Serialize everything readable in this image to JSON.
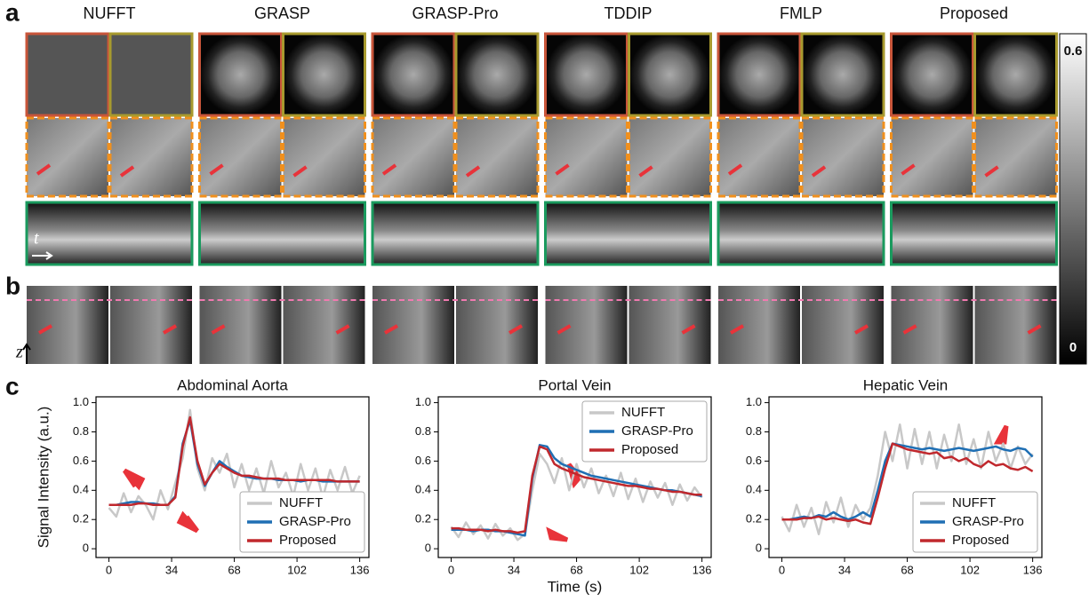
{
  "panels": [
    "a",
    "b",
    "c"
  ],
  "methods": [
    "NUFFT",
    "GRASP",
    "GRASP-Pro",
    "TDDIP",
    "FMLP",
    "Proposed"
  ],
  "colorbar": {
    "max": 0.6,
    "min": 0
  },
  "axis_letters": {
    "time": "t",
    "depth": "z"
  },
  "chart_data": [
    {
      "type": "line",
      "title": "Abdominal Aorta",
      "ylabel": "Signal Intensity (a.u.)",
      "legend": "lower right",
      "x": [
        0,
        4,
        8,
        12,
        16,
        20,
        24,
        28,
        32,
        36,
        40,
        44,
        48,
        52,
        56,
        60,
        64,
        68,
        72,
        76,
        80,
        84,
        88,
        92,
        96,
        100,
        104,
        108,
        112,
        116,
        120,
        124,
        128,
        132,
        136
      ],
      "xlim": [
        -7,
        141
      ],
      "xticks": [
        0,
        34,
        68,
        102,
        136
      ],
      "ylim": [
        -0.06,
        1.04
      ],
      "yticks": [
        0,
        0.2,
        0.4,
        0.6,
        0.8,
        {
          "value": 1,
          "label": "1.0"
        }
      ],
      "series": [
        {
          "name": "NUFFT",
          "color": "#c8c8c8",
          "values": [
            0.28,
            0.22,
            0.38,
            0.25,
            0.36,
            0.3,
            0.2,
            0.4,
            0.27,
            0.45,
            0.62,
            0.95,
            0.55,
            0.4,
            0.62,
            0.52,
            0.65,
            0.42,
            0.58,
            0.4,
            0.55,
            0.38,
            0.6,
            0.42,
            0.52,
            0.36,
            0.58,
            0.4,
            0.55,
            0.35,
            0.54,
            0.4,
            0.56,
            0.38,
            0.5
          ]
        },
        {
          "name": "GRASP-Pro",
          "color": "#1f6fb4",
          "values": [
            0.3,
            0.3,
            0.31,
            0.32,
            0.32,
            0.31,
            0.31,
            0.3,
            0.3,
            0.36,
            0.72,
            0.88,
            0.58,
            0.43,
            0.52,
            0.6,
            0.56,
            0.53,
            0.5,
            0.49,
            0.48,
            0.48,
            0.48,
            0.47,
            0.47,
            0.47,
            0.46,
            0.47,
            0.47,
            0.46,
            0.46,
            0.46,
            0.46,
            0.46,
            0.46
          ]
        },
        {
          "name": "Proposed",
          "color": "#c0282d",
          "values": [
            0.3,
            0.3,
            0.3,
            0.3,
            0.31,
            0.31,
            0.3,
            0.3,
            0.3,
            0.35,
            0.7,
            0.9,
            0.6,
            0.44,
            0.52,
            0.58,
            0.55,
            0.52,
            0.5,
            0.5,
            0.49,
            0.48,
            0.48,
            0.48,
            0.47,
            0.47,
            0.47,
            0.47,
            0.47,
            0.47,
            0.47,
            0.46,
            0.46,
            0.46,
            0.46
          ]
        }
      ]
    },
    {
      "type": "line",
      "title": "Portal Vein",
      "xlabel": "Time (s)",
      "legend": "upper right",
      "x": [
        0,
        4,
        8,
        12,
        16,
        20,
        24,
        28,
        32,
        36,
        40,
        44,
        48,
        52,
        56,
        60,
        64,
        68,
        72,
        76,
        80,
        84,
        88,
        92,
        96,
        100,
        104,
        108,
        112,
        116,
        120,
        124,
        128,
        132,
        136
      ],
      "xlim": [
        -7,
        141
      ],
      "xticks": [
        0,
        34,
        68,
        102,
        136
      ],
      "ylim": [
        -0.06,
        1.04
      ],
      "yticks": [
        0,
        0.2,
        0.4,
        0.6,
        0.8,
        {
          "value": 1,
          "label": "1.0"
        }
      ],
      "series": [
        {
          "name": "NUFFT",
          "color": "#c8c8c8",
          "values": [
            0.15,
            0.08,
            0.18,
            0.1,
            0.16,
            0.07,
            0.17,
            0.09,
            0.14,
            0.06,
            0.1,
            0.4,
            0.65,
            0.58,
            0.45,
            0.62,
            0.4,
            0.58,
            0.42,
            0.55,
            0.38,
            0.5,
            0.36,
            0.52,
            0.34,
            0.48,
            0.32,
            0.46,
            0.35,
            0.45,
            0.3,
            0.44,
            0.33,
            0.42,
            0.35
          ]
        },
        {
          "name": "GRASP-Pro",
          "color": "#1f6fb4",
          "values": [
            0.13,
            0.13,
            0.13,
            0.12,
            0.13,
            0.13,
            0.12,
            0.12,
            0.11,
            0.1,
            0.09,
            0.48,
            0.71,
            0.7,
            0.62,
            0.58,
            0.56,
            0.54,
            0.52,
            0.5,
            0.49,
            0.48,
            0.47,
            0.46,
            0.45,
            0.44,
            0.43,
            0.42,
            0.41,
            0.4,
            0.4,
            0.39,
            0.38,
            0.37,
            0.36
          ]
        },
        {
          "name": "Proposed",
          "color": "#c0282d",
          "values": [
            0.14,
            0.14,
            0.13,
            0.13,
            0.13,
            0.12,
            0.13,
            0.12,
            0.12,
            0.11,
            0.12,
            0.5,
            0.7,
            0.68,
            0.58,
            0.55,
            0.53,
            0.51,
            0.49,
            0.48,
            0.47,
            0.46,
            0.45,
            0.44,
            0.43,
            0.43,
            0.42,
            0.41,
            0.41,
            0.4,
            0.39,
            0.39,
            0.38,
            0.37,
            0.37
          ]
        }
      ]
    },
    {
      "type": "line",
      "title": "Hepatic Vein",
      "legend": "lower right",
      "x": [
        0,
        4,
        8,
        12,
        16,
        20,
        24,
        28,
        32,
        36,
        40,
        44,
        48,
        52,
        56,
        60,
        64,
        68,
        72,
        76,
        80,
        84,
        88,
        92,
        96,
        100,
        104,
        108,
        112,
        116,
        120,
        124,
        128,
        132,
        136
      ],
      "xlim": [
        -7,
        141
      ],
      "xticks": [
        0,
        34,
        68,
        102,
        136
      ],
      "ylim": [
        -0.06,
        1.04
      ],
      "yticks": [
        0,
        0.2,
        0.4,
        0.6,
        0.8,
        {
          "value": 1,
          "label": "1.0"
        }
      ],
      "series": [
        {
          "name": "NUFFT",
          "color": "#c8c8c8",
          "values": [
            0.22,
            0.12,
            0.3,
            0.15,
            0.28,
            0.1,
            0.32,
            0.18,
            0.35,
            0.15,
            0.3,
            0.2,
            0.28,
            0.5,
            0.8,
            0.6,
            0.85,
            0.55,
            0.82,
            0.58,
            0.8,
            0.55,
            0.78,
            0.6,
            0.85,
            0.58,
            0.75,
            0.55,
            0.8,
            0.6,
            0.72,
            0.55,
            0.7,
            0.58,
            0.65
          ]
        },
        {
          "name": "GRASP-Pro",
          "color": "#1f6fb4",
          "values": [
            0.2,
            0.2,
            0.21,
            0.22,
            0.21,
            0.23,
            0.22,
            0.25,
            0.22,
            0.2,
            0.22,
            0.25,
            0.22,
            0.4,
            0.6,
            0.72,
            0.71,
            0.7,
            0.69,
            0.68,
            0.69,
            0.68,
            0.67,
            0.68,
            0.69,
            0.68,
            0.67,
            0.68,
            0.69,
            0.7,
            0.68,
            0.67,
            0.69,
            0.68,
            0.63
          ]
        },
        {
          "name": "Proposed",
          "color": "#c0282d",
          "values": [
            0.2,
            0.2,
            0.2,
            0.21,
            0.21,
            0.22,
            0.2,
            0.21,
            0.2,
            0.19,
            0.2,
            0.18,
            0.17,
            0.35,
            0.55,
            0.72,
            0.7,
            0.68,
            0.67,
            0.66,
            0.65,
            0.66,
            0.62,
            0.63,
            0.6,
            0.62,
            0.58,
            0.56,
            0.6,
            0.57,
            0.58,
            0.55,
            0.54,
            0.56,
            0.53
          ]
        }
      ]
    }
  ]
}
